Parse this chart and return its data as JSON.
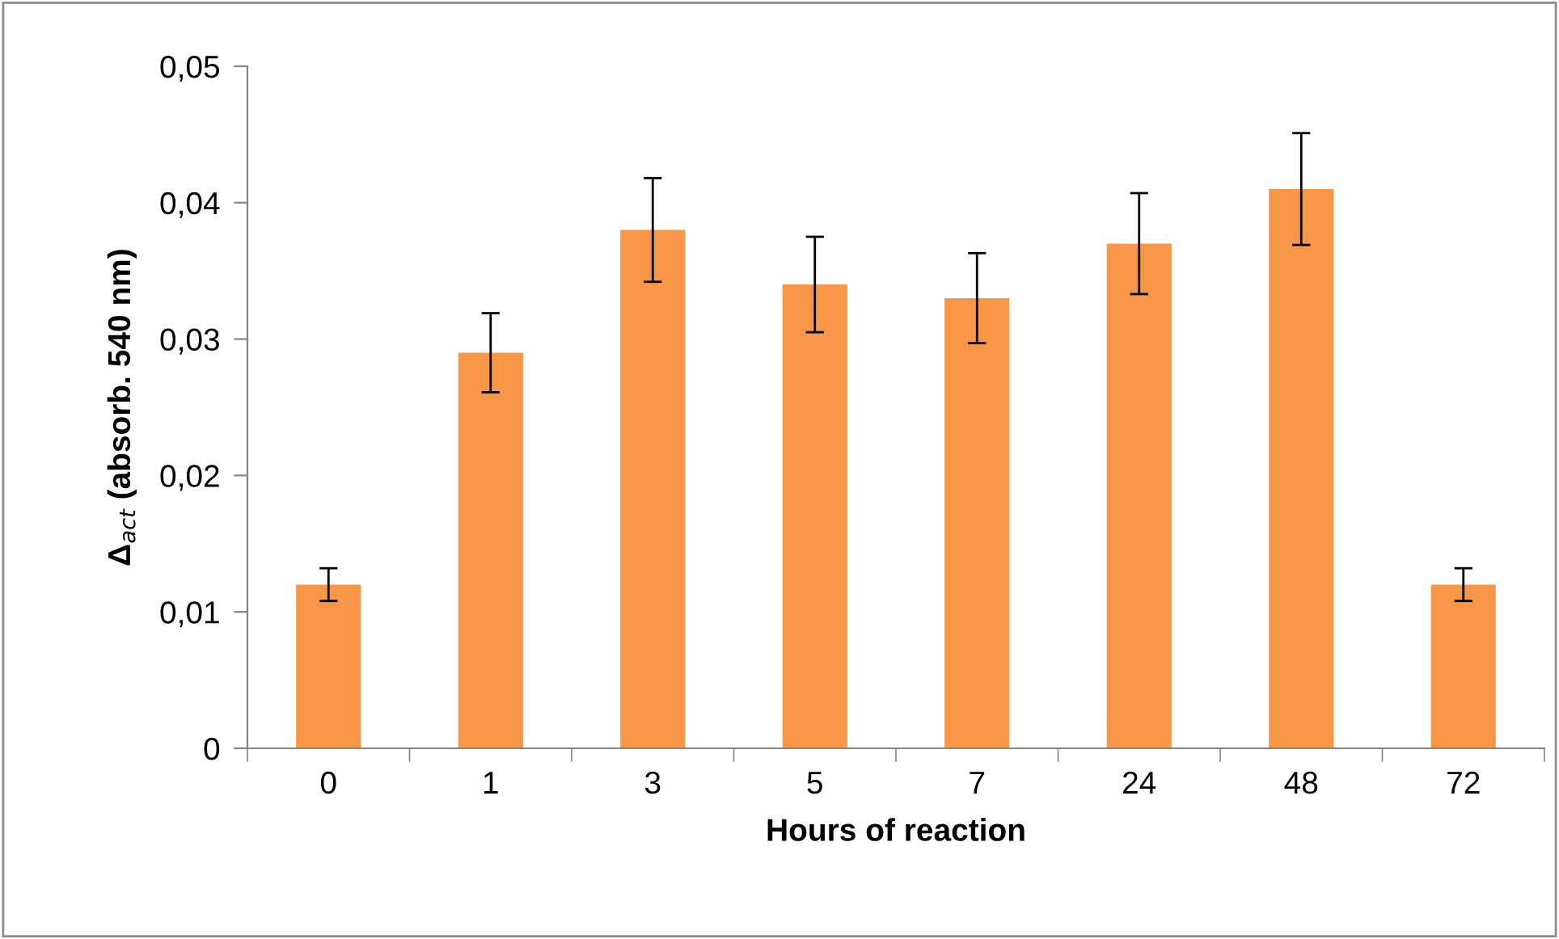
{
  "chart_data": {
    "type": "bar",
    "xlabel": "Hours of reaction",
    "ylabel": "Δ$_{act}$ (absorb. 540 nm)",
    "categories": [
      "0",
      "1",
      "3",
      "5",
      "7",
      "24",
      "48",
      "72"
    ],
    "values": [
      0.012,
      0.029,
      0.038,
      0.034,
      0.033,
      0.037,
      0.041,
      0.012
    ],
    "errors": [
      0.0012,
      0.0029,
      0.0038,
      0.0035,
      0.0033,
      0.0037,
      0.0041,
      0.0012
    ],
    "color": "#f79646",
    "ylim": [
      0,
      0.05
    ],
    "yticks": [
      0,
      {
        "value": 0.01,
        "label": "0,01"
      },
      {
        "value": 0.02,
        "label": "0,02"
      },
      {
        "value": 0.03,
        "label": "0,03"
      },
      {
        "value": 0.04,
        "label": "0,04"
      },
      {
        "value": 0.05,
        "label": "0,05"
      }
    ],
    "grid": false,
    "legend": false
  }
}
